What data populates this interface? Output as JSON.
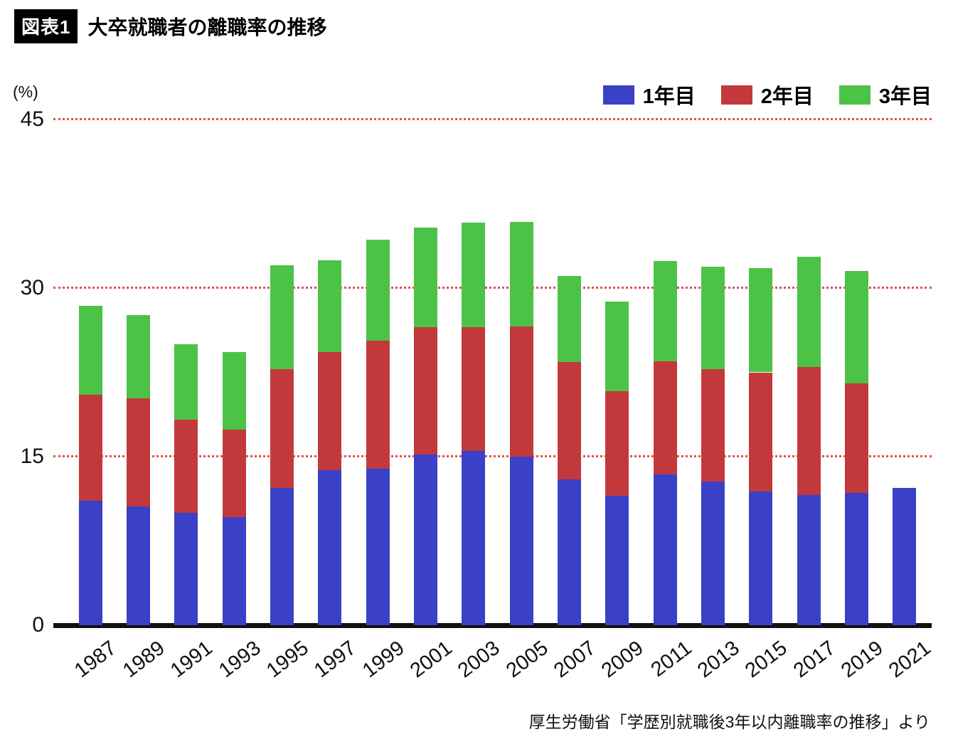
{
  "header": {
    "figure_label": "図表1",
    "title": "大卒就職者の離職率の推移"
  },
  "footer": {
    "source": "厚生労働省「学歴別就職後3年以内離職率の推移」より"
  },
  "chart_data": {
    "type": "bar",
    "stacked": true,
    "title": "大卒就職者の離職率の推移",
    "ylabel": "(%)",
    "ylim": [
      0,
      45
    ],
    "y_ticks": [
      0,
      15,
      30,
      45
    ],
    "grid": "dotted horizontal lines at 15, 30, 45",
    "gridline_color": "#e0514e",
    "axis_color": "#111111",
    "legend_position": "top-right",
    "categories": [
      "1987",
      "1989",
      "1991",
      "1993",
      "1995",
      "1997",
      "1999",
      "2001",
      "2003",
      "2005",
      "2007",
      "2009",
      "2011",
      "2013",
      "2015",
      "2017",
      "2019",
      "2021"
    ],
    "series": [
      {
        "name": "1年目",
        "color": "#3a41c6",
        "values": [
          11.1,
          10.6,
          10.0,
          9.6,
          12.2,
          13.8,
          13.9,
          15.2,
          15.5,
          15.0,
          13.0,
          11.5,
          13.4,
          12.8,
          11.9,
          11.6,
          11.8,
          12.2
        ]
      },
      {
        "name": "2年目",
        "color": "#c3393b",
        "values": [
          9.4,
          9.6,
          8.3,
          7.8,
          10.6,
          10.5,
          11.4,
          11.3,
          11.0,
          11.6,
          10.4,
          9.3,
          10.1,
          10.0,
          10.6,
          11.4,
          9.7,
          0
        ]
      },
      {
        "name": "3年目",
        "color": "#4cc247",
        "values": [
          7.9,
          7.4,
          6.7,
          6.9,
          9.2,
          8.2,
          9.0,
          8.9,
          9.3,
          9.3,
          7.7,
          8.0,
          8.9,
          9.1,
          9.3,
          9.8,
          10.0,
          0
        ]
      }
    ],
    "three_year_totals": [
      28.4,
      27.6,
      25.0,
      24.3,
      32.0,
      32.5,
      34.3,
      35.4,
      35.8,
      35.9,
      31.1,
      28.8,
      32.4,
      31.9,
      31.8,
      32.8,
      31.5,
      12.2
    ]
  }
}
